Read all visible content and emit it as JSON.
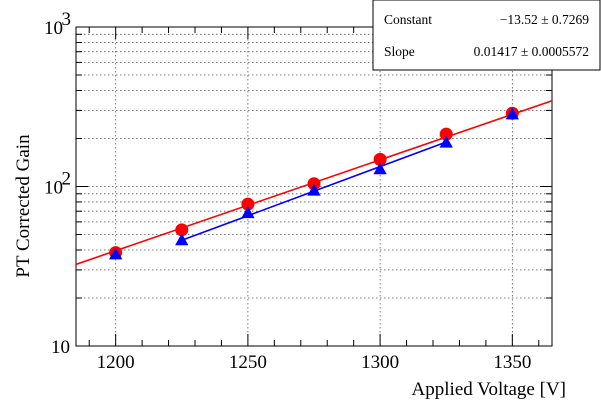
{
  "chart_data": {
    "type": "scatter",
    "xlabel": "Applied Voltage [V]",
    "ylabel": "PT Corrected Gain",
    "xlim": [
      1185,
      1365
    ],
    "ylim": [
      10,
      1000
    ],
    "yscale": "log",
    "grid": true,
    "x_ticks": [
      1200,
      1250,
      1300,
      1350
    ],
    "x_tick_labels": [
      "1200",
      "1250",
      "1300",
      "1350"
    ],
    "y_ticks": [
      10,
      100,
      1000
    ],
    "y_tick_labels": [
      "10",
      "10",
      "10"
    ],
    "y_tick_exponents": [
      "",
      "2",
      "3"
    ],
    "series": [
      {
        "marker": "circle",
        "color": "#ff0000",
        "x": [
          1200,
          1225,
          1250,
          1275,
          1300,
          1325,
          1350
        ],
        "y": [
          38.5,
          53.5,
          77.5,
          104,
          148,
          213,
          288
        ]
      },
      {
        "marker": "triangle",
        "color": "#0000ff",
        "x": [
          1200,
          1225,
          1250,
          1275,
          1300,
          1325,
          1350
        ],
        "y": [
          37.5,
          46,
          68,
          94,
          128,
          188,
          283
        ]
      }
    ],
    "fits": [
      {
        "color": "#ff0000",
        "x": [
          1185,
          1365
        ],
        "y": [
          32.5,
          345
        ]
      },
      {
        "color": "#0000ff",
        "x": [
          1225,
          1325
        ],
        "y": [
          46,
          190
        ]
      }
    ],
    "stats_box": {
      "rows": [
        {
          "label": "Constant",
          "value": "−13.52 ± 0.7269"
        },
        {
          "label": "Slope",
          "value": "0.01417 ± 0.0005572"
        }
      ]
    }
  }
}
